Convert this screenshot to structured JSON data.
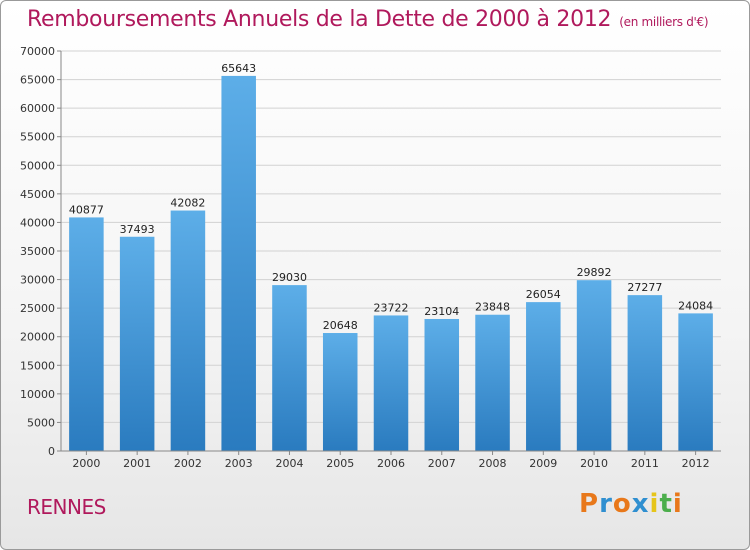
{
  "header": {
    "title": "Remboursements Annuels de la Dette de 2000 à 2012",
    "unit": "(en milliers d'€)"
  },
  "footer": {
    "city": "RENNES",
    "logo": "Proxiti"
  },
  "logo_colors": [
    "#e8781a",
    "#2f8fd0",
    "#e8781a",
    "#2f8fd0",
    "#e6c51a",
    "#4cae4c",
    "#e8781a"
  ],
  "chart_data": {
    "type": "bar",
    "title": "Remboursements Annuels de la Dette de 2000 à 2012",
    "xlabel": "",
    "ylabel": "",
    "categories": [
      "2000",
      "2001",
      "2002",
      "2003",
      "2004",
      "2005",
      "2006",
      "2007",
      "2008",
      "2009",
      "2010",
      "2011",
      "2012"
    ],
    "values": [
      40877,
      37493,
      42082,
      65643,
      29030,
      20648,
      23722,
      23104,
      23848,
      26054,
      29892,
      27277,
      24084
    ],
    "ylim": [
      0,
      70000
    ],
    "yticks": [
      0,
      5000,
      10000,
      15000,
      20000,
      25000,
      30000,
      35000,
      40000,
      45000,
      50000,
      55000,
      60000,
      65000,
      70000
    ],
    "grid": true,
    "bar_color_top": "#5daee8",
    "bar_color_bottom": "#2a7bbf"
  }
}
